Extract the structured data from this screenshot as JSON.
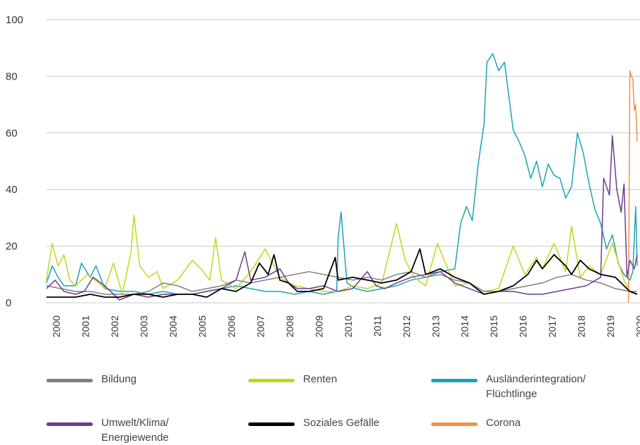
{
  "chart_data": {
    "type": "line",
    "x_range": [
      2000,
      2020.25
    ],
    "ylim": [
      0,
      100
    ],
    "y_ticks": [
      "0",
      "20",
      "40",
      "60",
      "80",
      "100"
    ],
    "x_ticks": [
      "2000",
      "2001",
      "2002",
      "2003",
      "2004",
      "2005",
      "2006",
      "2007",
      "2008",
      "2009",
      "2010",
      "2011",
      "2012",
      "2013",
      "2014",
      "2015",
      "2016",
      "2017",
      "2018",
      "2019",
      "2020"
    ],
    "grid": true,
    "legend_position": "bottom",
    "series": [
      {
        "name": "Bildung",
        "color": "#7f7f7f",
        "points": [
          [
            2000,
            6
          ],
          [
            2000.5,
            5
          ],
          [
            2001,
            4
          ],
          [
            2001.5,
            4
          ],
          [
            2002,
            3
          ],
          [
            2002.5,
            3
          ],
          [
            2003,
            3
          ],
          [
            2003.5,
            4
          ],
          [
            2004,
            7
          ],
          [
            2004.5,
            6
          ],
          [
            2005,
            4
          ],
          [
            2005.5,
            5
          ],
          [
            2006,
            6
          ],
          [
            2006.5,
            8
          ],
          [
            2007,
            7
          ],
          [
            2007.5,
            8
          ],
          [
            2008,
            9
          ],
          [
            2008.5,
            10
          ],
          [
            2009,
            11
          ],
          [
            2009.5,
            10
          ],
          [
            2010,
            9
          ],
          [
            2010.5,
            8
          ],
          [
            2011,
            9
          ],
          [
            2011.5,
            8
          ],
          [
            2012,
            10
          ],
          [
            2012.5,
            11
          ],
          [
            2013,
            9
          ],
          [
            2013.5,
            10
          ],
          [
            2014,
            8
          ],
          [
            2014.5,
            7
          ],
          [
            2015,
            4
          ],
          [
            2015.5,
            4
          ],
          [
            2016,
            5
          ],
          [
            2016.5,
            6
          ],
          [
            2017,
            7
          ],
          [
            2017.5,
            9
          ],
          [
            2018,
            10
          ],
          [
            2018.5,
            8
          ],
          [
            2019,
            7
          ],
          [
            2019.5,
            5
          ],
          [
            2020,
            4
          ],
          [
            2020.25,
            4
          ]
        ]
      },
      {
        "name": "Renten",
        "color": "#c5d41f",
        "points": [
          [
            2000,
            8
          ],
          [
            2000.2,
            21
          ],
          [
            2000.4,
            13
          ],
          [
            2000.6,
            17
          ],
          [
            2000.8,
            8
          ],
          [
            2001,
            6
          ],
          [
            2001.4,
            10
          ],
          [
            2001.8,
            7
          ],
          [
            2002,
            5
          ],
          [
            2002.3,
            14
          ],
          [
            2002.6,
            3
          ],
          [
            2002.9,
            18
          ],
          [
            2003,
            31
          ],
          [
            2003.2,
            13
          ],
          [
            2003.5,
            9
          ],
          [
            2003.8,
            11
          ],
          [
            2004,
            5
          ],
          [
            2004.5,
            8
          ],
          [
            2005,
            15
          ],
          [
            2005.3,
            12
          ],
          [
            2005.6,
            8
          ],
          [
            2005.8,
            23
          ],
          [
            2006,
            8
          ],
          [
            2006.5,
            5
          ],
          [
            2007,
            11
          ],
          [
            2007.5,
            19
          ],
          [
            2008,
            9
          ],
          [
            2008.5,
            6
          ],
          [
            2009,
            5
          ],
          [
            2009.5,
            4
          ],
          [
            2010,
            4
          ],
          [
            2010.5,
            6
          ],
          [
            2011,
            5
          ],
          [
            2011.5,
            7
          ],
          [
            2012,
            28
          ],
          [
            2012.3,
            15
          ],
          [
            2012.6,
            9
          ],
          [
            2013,
            6
          ],
          [
            2013.4,
            21
          ],
          [
            2013.8,
            11
          ],
          [
            2014,
            6
          ],
          [
            2014.5,
            7
          ],
          [
            2015,
            4
          ],
          [
            2015.5,
            5
          ],
          [
            2016,
            20
          ],
          [
            2016.4,
            10
          ],
          [
            2016.8,
            16
          ],
          [
            2017,
            12
          ],
          [
            2017.4,
            21
          ],
          [
            2017.8,
            11
          ],
          [
            2018,
            27
          ],
          [
            2018.3,
            9
          ],
          [
            2018.6,
            13
          ],
          [
            2019,
            10
          ],
          [
            2019.4,
            21
          ],
          [
            2019.8,
            8
          ],
          [
            2020,
            4
          ],
          [
            2020.25,
            3
          ]
        ]
      },
      {
        "name": "Ausländerintegration/\nFlüchtlinge",
        "color": "#1aa3b5",
        "points": [
          [
            2000,
            7
          ],
          [
            2000.2,
            13
          ],
          [
            2000.4,
            9
          ],
          [
            2000.6,
            6
          ],
          [
            2001,
            6
          ],
          [
            2001.2,
            14
          ],
          [
            2001.5,
            9
          ],
          [
            2001.7,
            13
          ],
          [
            2002,
            5
          ],
          [
            2002.5,
            4
          ],
          [
            2003,
            4
          ],
          [
            2003.5,
            3
          ],
          [
            2004,
            4
          ],
          [
            2004.5,
            3
          ],
          [
            2005,
            3
          ],
          [
            2005.5,
            4
          ],
          [
            2006,
            5
          ],
          [
            2006.5,
            6
          ],
          [
            2007,
            5
          ],
          [
            2007.5,
            4
          ],
          [
            2008,
            4
          ],
          [
            2008.5,
            3
          ],
          [
            2009,
            4
          ],
          [
            2009.5,
            3
          ],
          [
            2009.95,
            4
          ],
          [
            2010,
            23
          ],
          [
            2010.1,
            32
          ],
          [
            2010.3,
            7
          ],
          [
            2010.6,
            5
          ],
          [
            2011,
            4
          ],
          [
            2011.5,
            5
          ],
          [
            2012,
            6
          ],
          [
            2012.5,
            8
          ],
          [
            2013,
            9
          ],
          [
            2013.5,
            11
          ],
          [
            2014,
            12
          ],
          [
            2014.2,
            28
          ],
          [
            2014.4,
            34
          ],
          [
            2014.6,
            29
          ],
          [
            2014.8,
            49
          ],
          [
            2015,
            63
          ],
          [
            2015.1,
            85
          ],
          [
            2015.3,
            88
          ],
          [
            2015.5,
            82
          ],
          [
            2015.7,
            85
          ],
          [
            2015.9,
            69
          ],
          [
            2016,
            61
          ],
          [
            2016.2,
            57
          ],
          [
            2016.4,
            52
          ],
          [
            2016.6,
            44
          ],
          [
            2016.8,
            50
          ],
          [
            2017,
            41
          ],
          [
            2017.2,
            49
          ],
          [
            2017.4,
            45
          ],
          [
            2017.6,
            44
          ],
          [
            2017.8,
            37
          ],
          [
            2018,
            41
          ],
          [
            2018.2,
            60
          ],
          [
            2018.4,
            53
          ],
          [
            2018.6,
            42
          ],
          [
            2018.8,
            33
          ],
          [
            2019,
            28
          ],
          [
            2019.2,
            19
          ],
          [
            2019.4,
            24
          ],
          [
            2019.6,
            14
          ],
          [
            2019.8,
            10
          ],
          [
            2020,
            8
          ],
          [
            2020.1,
            11
          ],
          [
            2020.2,
            34
          ],
          [
            2020.25,
            13
          ]
        ]
      },
      {
        "name": "Umwelt/Klima/\nEnergiewende",
        "color": "#6c3b95",
        "points": [
          [
            2000,
            5
          ],
          [
            2000.3,
            8
          ],
          [
            2000.6,
            4
          ],
          [
            2001,
            3
          ],
          [
            2001.3,
            4
          ],
          [
            2001.6,
            9
          ],
          [
            2002,
            6
          ],
          [
            2002.3,
            3
          ],
          [
            2002.5,
            1
          ],
          [
            2003,
            3
          ],
          [
            2003.5,
            2
          ],
          [
            2004,
            3
          ],
          [
            2004.5,
            3
          ],
          [
            2005,
            3
          ],
          [
            2005.5,
            4
          ],
          [
            2006,
            5
          ],
          [
            2006.5,
            8
          ],
          [
            2006.8,
            18
          ],
          [
            2007,
            8
          ],
          [
            2007.5,
            9
          ],
          [
            2008,
            12
          ],
          [
            2008.3,
            7
          ],
          [
            2008.6,
            5
          ],
          [
            2009,
            5
          ],
          [
            2009.5,
            6
          ],
          [
            2010,
            4
          ],
          [
            2010.5,
            5
          ],
          [
            2011,
            11
          ],
          [
            2011.3,
            6
          ],
          [
            2011.6,
            5
          ],
          [
            2012,
            7
          ],
          [
            2012.5,
            9
          ],
          [
            2013,
            10
          ],
          [
            2013.5,
            11
          ],
          [
            2014,
            7
          ],
          [
            2014.5,
            5
          ],
          [
            2015,
            3
          ],
          [
            2015.5,
            4
          ],
          [
            2016,
            4
          ],
          [
            2016.5,
            3
          ],
          [
            2017,
            3
          ],
          [
            2017.5,
            4
          ],
          [
            2018,
            5
          ],
          [
            2018.5,
            6
          ],
          [
            2019,
            9
          ],
          [
            2019.1,
            44
          ],
          [
            2019.3,
            38
          ],
          [
            2019.4,
            59
          ],
          [
            2019.55,
            40
          ],
          [
            2019.7,
            32
          ],
          [
            2019.8,
            42
          ],
          [
            2019.9,
            9
          ],
          [
            2020,
            15
          ],
          [
            2020.15,
            12
          ],
          [
            2020.25,
            17
          ]
        ]
      },
      {
        "name": "Soziales Gefälle",
        "color": "#000000",
        "points": [
          [
            2000,
            2
          ],
          [
            2000.5,
            2
          ],
          [
            2001,
            2
          ],
          [
            2001.5,
            3
          ],
          [
            2002,
            2
          ],
          [
            2002.5,
            2
          ],
          [
            2003,
            3
          ],
          [
            2003.5,
            3
          ],
          [
            2004,
            2
          ],
          [
            2004.5,
            3
          ],
          [
            2005,
            3
          ],
          [
            2005.5,
            2
          ],
          [
            2006,
            5
          ],
          [
            2006.5,
            4
          ],
          [
            2007,
            7
          ],
          [
            2007.3,
            14
          ],
          [
            2007.6,
            10
          ],
          [
            2007.8,
            17
          ],
          [
            2008,
            8
          ],
          [
            2008.3,
            7
          ],
          [
            2008.6,
            4
          ],
          [
            2009,
            4
          ],
          [
            2009.5,
            5
          ],
          [
            2009.9,
            16
          ],
          [
            2010,
            8
          ],
          [
            2010.5,
            9
          ],
          [
            2011,
            8
          ],
          [
            2011.5,
            7
          ],
          [
            2012,
            8
          ],
          [
            2012.5,
            11
          ],
          [
            2012.8,
            19
          ],
          [
            2013,
            10
          ],
          [
            2013.5,
            12
          ],
          [
            2014,
            9
          ],
          [
            2014.5,
            7
          ],
          [
            2015,
            3
          ],
          [
            2015.5,
            4
          ],
          [
            2016,
            6
          ],
          [
            2016.5,
            10
          ],
          [
            2016.8,
            15
          ],
          [
            2017,
            12
          ],
          [
            2017.4,
            17
          ],
          [
            2017.8,
            13
          ],
          [
            2018,
            10
          ],
          [
            2018.3,
            15
          ],
          [
            2018.6,
            12
          ],
          [
            2019,
            10
          ],
          [
            2019.5,
            9
          ],
          [
            2020,
            4
          ],
          [
            2020.25,
            3
          ]
        ]
      },
      {
        "name": "Corona",
        "color": "#f0904a",
        "points": [
          [
            2019.95,
            0
          ],
          [
            2020.0,
            82
          ],
          [
            2020.05,
            80
          ],
          [
            2020.1,
            79
          ],
          [
            2020.15,
            68
          ],
          [
            2020.2,
            70
          ],
          [
            2020.25,
            57
          ]
        ]
      }
    ]
  }
}
